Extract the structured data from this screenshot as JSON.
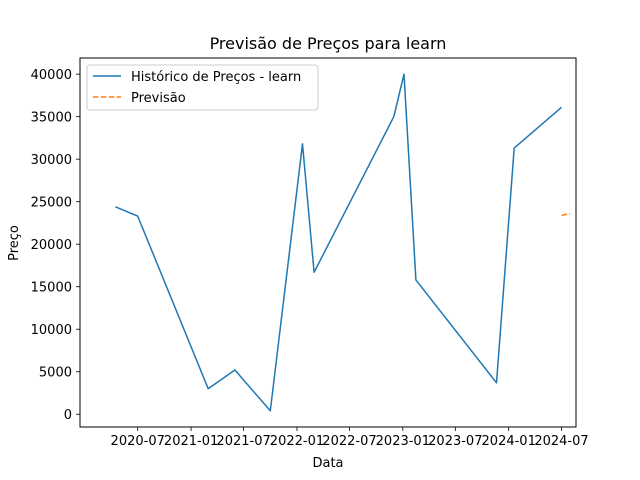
{
  "chart_data": {
    "type": "line",
    "title": "Previsão de Preços para learn",
    "xlabel": "Data",
    "ylabel": "Preço",
    "x_ticks": [
      "2020-07",
      "2021-01",
      "2021-07",
      "2022-01",
      "2022-07",
      "2023-01",
      "2023-07",
      "2024-01",
      "2024-07"
    ],
    "y_ticks": [
      0,
      5000,
      10000,
      15000,
      20000,
      25000,
      30000,
      35000,
      40000
    ],
    "xlim": [
      "2019-12-15",
      "2024-08-20"
    ],
    "ylim": [
      -1500,
      41900
    ],
    "grid": false,
    "legend_position": "upper-left",
    "series": [
      {
        "name": "Histórico de Preços - learn",
        "color": "#1f77b4",
        "style": "solid",
        "points": [
          {
            "x": "2020-04-15",
            "y": 24400
          },
          {
            "x": "2020-07-01",
            "y": 23300
          },
          {
            "x": "2021-03-01",
            "y": 3000
          },
          {
            "x": "2021-06-01",
            "y": 5200
          },
          {
            "x": "2021-10-01",
            "y": 400
          },
          {
            "x": "2022-01-20",
            "y": 31800
          },
          {
            "x": "2022-03-01",
            "y": 16700
          },
          {
            "x": "2022-12-01",
            "y": 35000
          },
          {
            "x": "2023-01-05",
            "y": 40000
          },
          {
            "x": "2023-02-15",
            "y": 15800
          },
          {
            "x": "2023-11-20",
            "y": 3700
          },
          {
            "x": "2024-01-20",
            "y": 31300
          },
          {
            "x": "2024-07-01",
            "y": 36100
          }
        ]
      },
      {
        "name": "Previsão",
        "color": "#ff7f0e",
        "style": "dashed",
        "points": [
          {
            "x": "2024-07-01",
            "y": 23400
          },
          {
            "x": "2024-07-31",
            "y": 23600
          }
        ]
      }
    ]
  }
}
